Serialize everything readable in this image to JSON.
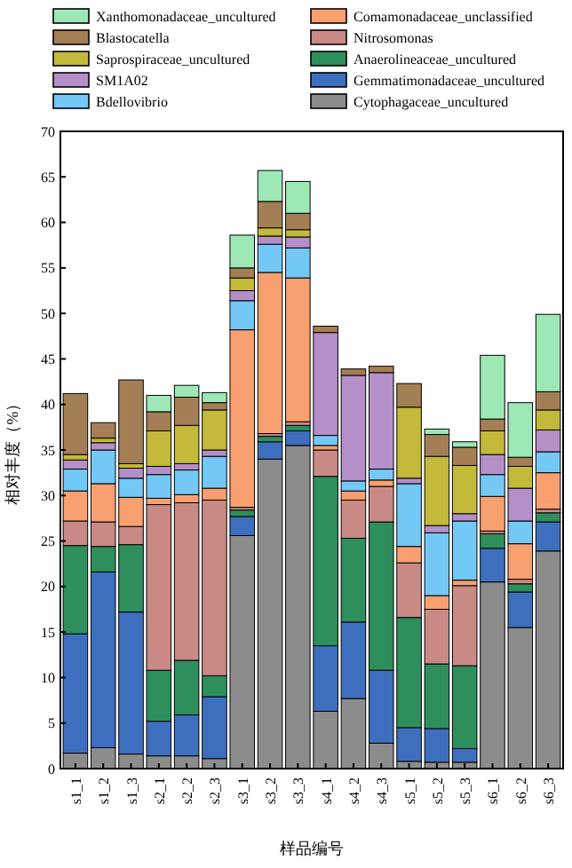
{
  "chart_data": {
    "type": "bar",
    "stacked": true,
    "xlabel": "样品编号",
    "ylabel": "相对丰度（%）",
    "legend": "top",
    "grid": false,
    "categories": [
      "s1_1",
      "s1_2",
      "s1_3",
      "s2_1",
      "s2_2",
      "s2_3",
      "s3_1",
      "s3_2",
      "s3_3",
      "s4_1",
      "s4_2",
      "s4_3",
      "s5_1",
      "s5_2",
      "s5_3",
      "s6_1",
      "s6_2",
      "s6_3"
    ],
    "ylim": [
      0,
      70
    ],
    "yticks": [
      0,
      5,
      10,
      15,
      20,
      25,
      30,
      35,
      40,
      45,
      50,
      55,
      60,
      65,
      70
    ],
    "series": [
      {
        "name": "Cytophagaceae_uncultured",
        "color": "#8c8c8c",
        "values": [
          1.7,
          2.3,
          1.6,
          1.4,
          1.4,
          1.1,
          25.6,
          34.0,
          35.5,
          6.3,
          7.7,
          2.8,
          0.8,
          0.7,
          0.7,
          20.5,
          15.5,
          23.9
        ]
      },
      {
        "name": "Gemmatimonadaceae_uncultured",
        "color": "#3e6fbe",
        "values": [
          13.1,
          19.3,
          15.6,
          3.8,
          4.5,
          6.8,
          2.1,
          1.9,
          1.6,
          7.2,
          8.4,
          8.0,
          3.7,
          3.7,
          1.5,
          3.7,
          3.9,
          3.2
        ]
      },
      {
        "name": "Anaerolineaceae_uncultured",
        "color": "#2e8f5c",
        "values": [
          9.7,
          2.8,
          7.4,
          5.6,
          6.0,
          2.3,
          0.7,
          0.6,
          0.6,
          18.6,
          9.2,
          16.3,
          12.1,
          7.1,
          9.1,
          1.6,
          0.9,
          1.0
        ]
      },
      {
        "name": "Nitrosomonas",
        "color": "#c98a86",
        "values": [
          2.7,
          2.7,
          2.0,
          18.2,
          17.3,
          19.3,
          0.3,
          0.3,
          0.4,
          2.9,
          4.2,
          3.9,
          6.0,
          6.0,
          8.8,
          0.3,
          0.5,
          0.4
        ]
      },
      {
        "name": "Comamonadaceae_unclassified",
        "color": "#f9a070",
        "values": [
          3.3,
          4.2,
          3.2,
          0.7,
          0.9,
          1.3,
          19.5,
          17.7,
          15.8,
          0.5,
          1.0,
          0.7,
          1.8,
          1.5,
          0.6,
          3.8,
          3.9,
          4.0
        ]
      },
      {
        "name": "Bdellovibrio",
        "color": "#74c8f5",
        "values": [
          2.4,
          3.7,
          2.1,
          2.6,
          2.7,
          3.5,
          3.2,
          3.1,
          3.3,
          1.1,
          1.1,
          1.2,
          6.9,
          6.9,
          6.5,
          2.4,
          2.5,
          2.3
        ]
      },
      {
        "name": "SM1A02",
        "color": "#b48fc8",
        "values": [
          1.0,
          0.8,
          1.1,
          0.9,
          0.7,
          0.7,
          1.1,
          0.9,
          1.2,
          11.3,
          11.6,
          10.6,
          0.6,
          0.8,
          0.8,
          2.2,
          3.6,
          2.4
        ]
      },
      {
        "name": "Saprospiraceae_uncultured",
        "color": "#c3b93a",
        "values": [
          0.6,
          0.5,
          0.5,
          3.9,
          4.2,
          4.4,
          1.4,
          0.9,
          0.8,
          0,
          0,
          0,
          7.8,
          7.6,
          5.3,
          2.6,
          2.4,
          2.2
        ]
      },
      {
        "name": "Blastocatella",
        "color": "#a47f55",
        "values": [
          6.7,
          1.7,
          9.2,
          2.1,
          3.1,
          0.8,
          1.1,
          2.9,
          1.8,
          0.7,
          0.7,
          0.7,
          2.6,
          2.4,
          2.0,
          1.3,
          1.0,
          2.0
        ]
      },
      {
        "name": "Xanthomonadaceae_uncultured",
        "color": "#9de8b5",
        "values": [
          0,
          0,
          0,
          1.8,
          1.3,
          1.1,
          3.6,
          3.4,
          3.5,
          0,
          0,
          0,
          0,
          0.6,
          0.6,
          7.0,
          6.0,
          8.5
        ]
      }
    ]
  }
}
